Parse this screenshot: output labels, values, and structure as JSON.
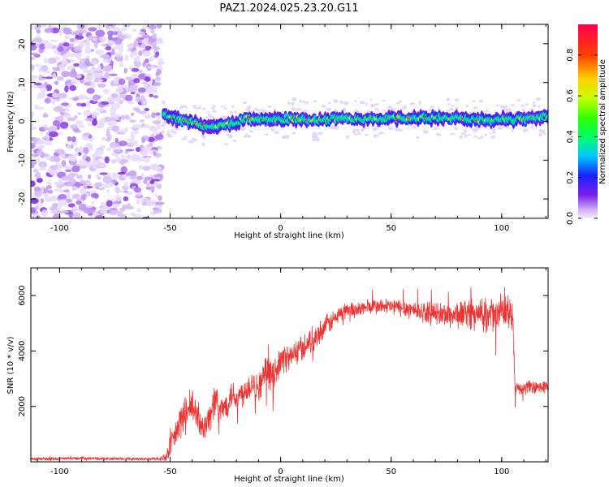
{
  "figure": {
    "title": "PAZ1.2024.025.23.20.G11"
  },
  "colors": {
    "snr_line": "#ee3333",
    "frame": "#000000",
    "scatter_noise": "#9a44e8"
  },
  "chart_data": [
    {
      "type": "heatmap",
      "xlabel": "Height of straight line (km)",
      "ylabel": "Frequency (Hz)",
      "xlim": [
        -113,
        121
      ],
      "ylim": [
        -25,
        25
      ],
      "x_ticks": [
        -100,
        -50,
        0,
        50,
        100
      ],
      "y_ticks": [
        -20,
        -10,
        0,
        10,
        20
      ],
      "colorbar": {
        "label": "Normalized spectral amplitude",
        "range": [
          0,
          0.95
        ],
        "ticks": [
          "0.0",
          "0.2",
          "0.4",
          "0.6",
          "0.8"
        ],
        "colormap": "rainbow (violet to red)"
      },
      "noise_region_x": [
        -113,
        -54
      ],
      "signal_band": [
        [
          -53,
          1.6
        ],
        [
          -45,
          0.3
        ],
        [
          -35,
          -1.0
        ],
        [
          -25,
          -1.0
        ],
        [
          -15,
          0.8
        ],
        [
          -5,
          0.3
        ],
        [
          5,
          0.8
        ],
        [
          15,
          0.2
        ],
        [
          25,
          0.7
        ],
        [
          35,
          0.5
        ],
        [
          45,
          0.7
        ],
        [
          55,
          0.7
        ],
        [
          65,
          0.8
        ],
        [
          75,
          1.0
        ],
        [
          85,
          0.5
        ],
        [
          95,
          0.3
        ],
        [
          105,
          0.5
        ],
        [
          115,
          0.7
        ],
        [
          121,
          1.5
        ]
      ]
    },
    {
      "type": "line",
      "xlabel": "Height of straight line (km)",
      "ylabel": "SNR (10 * v/v)",
      "xlim": [
        -113,
        121
      ],
      "ylim": [
        0,
        7000
      ],
      "x_ticks": [
        -100,
        -50,
        0,
        50,
        100
      ],
      "y_ticks": [
        2000,
        4000,
        6000
      ],
      "series": [
        {
          "x": [
            -113,
            -90,
            -70,
            -55,
            -52,
            -50,
            -47,
            -45,
            -42,
            -40,
            -38,
            -35,
            -33,
            -31,
            -30,
            -28,
            -25,
            -22,
            -20,
            -17,
            -15,
            -12,
            -10,
            -8,
            -6,
            -4,
            -2,
            0,
            2,
            4,
            6,
            8,
            10,
            12,
            14,
            16,
            18,
            20,
            22,
            25,
            28,
            30,
            35,
            40,
            45,
            50,
            55,
            60,
            65,
            70,
            75,
            80,
            85,
            90,
            95,
            98,
            100,
            103,
            105,
            106,
            108,
            112,
            116,
            121
          ],
          "y": [
            100,
            130,
            100,
            110,
            180,
            500,
            1100,
            1500,
            1800,
            2000,
            1600,
            1300,
            1500,
            1800,
            2400,
            1800,
            2000,
            2500,
            2300,
            2500,
            2700,
            2900,
            2600,
            3100,
            3300,
            3000,
            3400,
            3600,
            3800,
            3700,
            3900,
            4000,
            4100,
            4300,
            4400,
            4500,
            4700,
            4900,
            5000,
            5200,
            5400,
            5500,
            5500,
            5600,
            5600,
            5600,
            5550,
            5500,
            5400,
            5350,
            5300,
            5300,
            5400,
            5250,
            5300,
            5350,
            5400,
            5400,
            5300,
            2700,
            2600,
            2700,
            2650,
            2750
          ],
          "noise_amplitude": [
            60,
            60,
            60,
            60,
            200,
            500,
            700,
            800,
            800,
            800,
            700,
            600,
            600,
            700,
            900,
            600,
            600,
            650,
            600,
            600,
            650,
            650,
            650,
            650,
            650,
            650,
            650,
            650,
            600,
            600,
            600,
            600,
            550,
            550,
            550,
            500,
            500,
            450,
            450,
            400,
            380,
            350,
            350,
            350,
            350,
            350,
            400,
            420,
            450,
            500,
            550,
            600,
            650,
            700,
            700,
            750,
            750,
            750,
            700,
            350,
            300,
            300,
            300,
            300
          ]
        }
      ]
    }
  ]
}
